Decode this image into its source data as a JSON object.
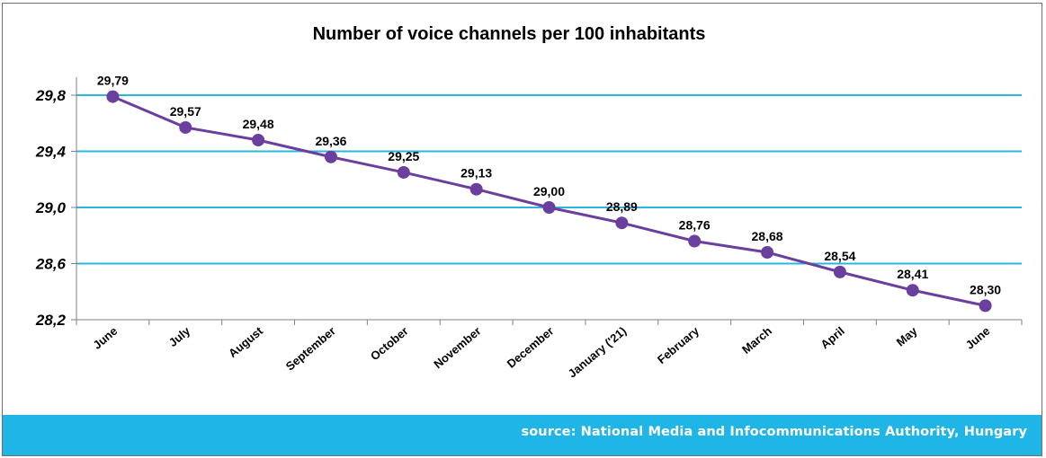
{
  "chart_data": {
    "type": "line",
    "title": "Number of voice channels per 100 inhabitants",
    "xlabel": "",
    "ylabel": "",
    "categories": [
      "June",
      "July",
      "August",
      "September",
      "October",
      "November",
      "December",
      "January ('21)",
      "February",
      "March",
      "April",
      "May",
      "June"
    ],
    "series": [
      {
        "values": [
          29.79,
          29.57,
          29.48,
          29.36,
          29.25,
          29.13,
          29.0,
          28.89,
          28.76,
          28.68,
          28.54,
          28.41,
          28.3
        ],
        "data_labels": [
          "29,79",
          "29,57",
          "29,48",
          "29,36",
          "29,25",
          "29,13",
          "29,00",
          "28,89",
          "28,76",
          "28,68",
          "28,54",
          "28,41",
          "28,30"
        ],
        "color": "#6a3f9e"
      }
    ],
    "ylim": [
      28.2,
      29.8
    ],
    "yticks": [
      28.2,
      28.6,
      29.0,
      29.4,
      29.8
    ],
    "ytick_labels": [
      "28,2",
      "28,6",
      "29,0",
      "29,4",
      "29,8"
    ],
    "grid": true,
    "gridline_color": "#29b6e0",
    "legend": "none"
  },
  "footer": {
    "source": "source: National Media and Infocommunications Authority, Hungary",
    "band_color": "#1fb5e6"
  }
}
